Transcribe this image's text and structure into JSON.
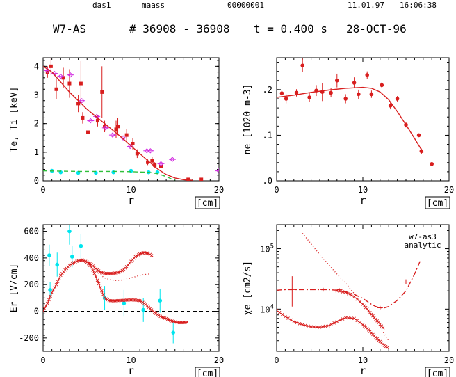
{
  "header": {
    "user": "das1",
    "group": "maass",
    "number": "00000001",
    "date": "11.01.97",
    "time": "16:06:38",
    "device": "W7-AS",
    "shots": "# 36908 - 36908",
    "time_label": "t = 0.400 s",
    "shot_date": "28-OCT-96"
  },
  "colors": {
    "red": "#d81e1e",
    "cyan": "#00e5ee",
    "magenta": "#d12be0",
    "green": "#2fbf3a",
    "ink": "#000000"
  },
  "chart_data": [
    {
      "type": "scatter",
      "panel": "top-left",
      "ylabel": "T_e, T_i  [keV]",
      "xlabel": "r",
      "xunit": "[cm]",
      "xlim": [
        0,
        20
      ],
      "ylim": [
        0,
        4.3
      ],
      "xticks": [
        0,
        10,
        20
      ],
      "yticks": [
        0,
        1,
        2,
        3,
        4
      ],
      "series": [
        {
          "name": "Te",
          "marker": "square",
          "color": "red",
          "x": [
            0.5,
            0.9,
            1.5,
            2.3,
            3,
            4,
            4.3,
            4.5,
            5.1,
            6.2,
            6.7,
            7,
            8.3,
            8.5,
            9.5,
            10.2,
            10.7,
            11.9,
            12.4,
            12.7,
            13.4,
            16.5,
            18
          ],
          "y": [
            3.8,
            4.0,
            3.2,
            3.6,
            3.4,
            2.7,
            3.4,
            2.2,
            1.7,
            2.1,
            3.1,
            1.9,
            1.8,
            1.9,
            1.6,
            1.3,
            0.95,
            0.65,
            0.7,
            0.55,
            0.5,
            0.05,
            0.05
          ],
          "yerr": [
            0.2,
            0.3,
            0.35,
            0.35,
            0.5,
            0.3,
            0.8,
            0.2,
            0.15,
            0.2,
            0.9,
            0.2,
            0.3,
            0.3,
            0.2,
            0.2,
            0.15,
            0.1,
            0.15,
            0.1,
            0.05,
            0.05,
            0.05
          ]
        },
        {
          "name": "Ti",
          "marker": "diamond",
          "color": "magenta",
          "x": [
            0.5,
            1.3,
            2.0,
            3.1,
            4.4,
            5.4,
            6.1,
            7.1,
            7.9,
            9.1,
            9.9,
            11.8,
            12.2,
            13.4,
            14.7,
            20
          ],
          "y": [
            3.85,
            3.75,
            3.65,
            3.7,
            2.8,
            2.1,
            2.25,
            1.85,
            1.6,
            1.5,
            1.2,
            1.05,
            1.05,
            0.6,
            0.75,
            0.35
          ]
        },
        {
          "name": "Ti-CX",
          "marker": "circle",
          "color": "cyan",
          "x": [
            1,
            2,
            4,
            6,
            8,
            10,
            12,
            13
          ],
          "y": [
            0.35,
            0.3,
            0.28,
            0.28,
            0.3,
            0.35,
            0.3,
            0.3
          ]
        },
        {
          "name": "Te-fit",
          "style": "line",
          "color": "red",
          "x": [
            0,
            1,
            2,
            3,
            4,
            5,
            6,
            7,
            8,
            9,
            10,
            11,
            12,
            13,
            14,
            15,
            16,
            17
          ],
          "y": [
            4.0,
            3.8,
            3.45,
            3.1,
            2.8,
            2.5,
            2.25,
            2.0,
            1.75,
            1.5,
            1.22,
            0.95,
            0.68,
            0.42,
            0.22,
            0.1,
            0.04,
            0.02
          ]
        },
        {
          "name": "Ti-fit",
          "style": "dashed",
          "color": "green",
          "x": [
            0,
            2,
            4,
            6,
            8,
            10,
            12,
            13,
            14,
            14.5,
            15
          ],
          "y": [
            0.35,
            0.34,
            0.33,
            0.33,
            0.33,
            0.32,
            0.3,
            0.25,
            0.15,
            0.08,
            0.03
          ]
        }
      ]
    },
    {
      "type": "scatter",
      "panel": "top-right",
      "ylabel": "n_e [10^20 m^-3]",
      "xlabel": "r",
      "xunit": "[cm]",
      "xlim": [
        0,
        20
      ],
      "ylim": [
        0,
        0.27
      ],
      "xticks": [
        0,
        10,
        20
      ],
      "yticks": [
        0,
        0.1,
        0.2
      ],
      "ytick_labels": [
        ".0",
        ".1",
        ".2"
      ],
      "series": [
        {
          "name": "ne",
          "marker": "circle",
          "color": "red",
          "x": [
            0.6,
            1.1,
            2.3,
            3,
            3.8,
            4.6,
            5.3,
            6.3,
            7,
            8,
            9,
            9.5,
            10.5,
            11,
            12.2,
            13.2,
            14,
            15,
            16.5,
            16.8,
            18
          ],
          "y": [
            0.192,
            0.18,
            0.193,
            0.253,
            0.183,
            0.198,
            0.195,
            0.193,
            0.22,
            0.18,
            0.215,
            0.19,
            0.232,
            0.19,
            0.21,
            0.165,
            0.18,
            0.123,
            0.1,
            0.065,
            0.037
          ],
          "yerr": [
            0.008,
            0.01,
            0.008,
            0.015,
            0.01,
            0.012,
            0.02,
            0.01,
            0.015,
            0.01,
            0.012,
            0.01,
            0.008,
            0.008,
            0.006,
            0.008,
            0.006,
            0.006,
            0.004,
            0.006,
            0.003
          ]
        },
        {
          "name": "ne-fit",
          "style": "line",
          "color": "red",
          "x": [
            0,
            2,
            4,
            6,
            8,
            10,
            11,
            12,
            13,
            14,
            15,
            16,
            17
          ],
          "y": [
            0.183,
            0.188,
            0.194,
            0.199,
            0.203,
            0.205,
            0.203,
            0.195,
            0.178,
            0.152,
            0.123,
            0.093,
            0.062
          ]
        }
      ]
    },
    {
      "type": "scatter",
      "panel": "bottom-left",
      "ylabel": "E_r [V/cm]",
      "xlabel": "r",
      "xunit": "[cm]",
      "xlim": [
        0,
        20
      ],
      "ylim": [
        -300,
        650
      ],
      "xticks": [
        0,
        10,
        20
      ],
      "yticks": [
        -200,
        0,
        200,
        400,
        600
      ],
      "series": [
        {
          "name": "Er-meas",
          "marker": "circle",
          "color": "cyan",
          "x": [
            0.7,
            0.8,
            1.6,
            3,
            3.3,
            4.3,
            7,
            9.2,
            11.4,
            13.3,
            14.8
          ],
          "y": [
            420,
            160,
            350,
            600,
            410,
            490,
            100,
            60,
            10,
            80,
            -160
          ],
          "yerr": [
            80,
            60,
            90,
            100,
            80,
            90,
            90,
            100,
            90,
            90,
            80
          ]
        },
        {
          "name": "Er-model-a",
          "style": "crosses",
          "color": "red",
          "x": [
            0,
            0.5,
            1,
            1.5,
            2,
            2.5,
            3,
            3.5,
            4,
            4.5,
            5,
            5.5,
            6,
            6.5,
            7,
            7.5,
            8,
            8.5,
            9,
            9.5,
            10,
            10.5,
            11,
            11.5,
            12,
            12.5,
            13,
            13.5,
            14,
            14.5,
            15,
            15.5,
            16,
            16.5
          ],
          "y": [
            0,
            60,
            140,
            200,
            270,
            310,
            345,
            365,
            380,
            385,
            370,
            330,
            260,
            180,
            100,
            80,
            78,
            80,
            82,
            84,
            85,
            84,
            80,
            60,
            30,
            0,
            -25,
            -45,
            -55,
            -70,
            -80,
            -85,
            -85,
            -80
          ]
        },
        {
          "name": "Er-model-b",
          "style": "crosses",
          "color": "red",
          "x": [
            5,
            5.5,
            6,
            6.5,
            7,
            7.5,
            8,
            8.5,
            9,
            9.5,
            10,
            10.5,
            11,
            11.5,
            12,
            12.5
          ],
          "y": [
            370,
            350,
            320,
            295,
            285,
            283,
            285,
            290,
            305,
            335,
            375,
            410,
            430,
            440,
            435,
            410
          ]
        },
        {
          "name": "Er-model-c",
          "style": "dotted",
          "color": "red",
          "x": [
            6,
            7,
            8,
            9,
            10,
            11,
            12
          ],
          "y": [
            300,
            250,
            230,
            235,
            250,
            270,
            280
          ]
        }
      ]
    },
    {
      "type": "line",
      "panel": "bottom-right",
      "ylabel": "χ_e  [cm^2/s]",
      "xlabel": "r",
      "xunit": "[cm]",
      "yscale": "log",
      "xlim": [
        0,
        20
      ],
      "ylim": [
        2000,
        250000
      ],
      "xticks": [
        0,
        10,
        20
      ],
      "yticks": [
        10000,
        100000
      ],
      "ytick_labels": [
        "10^4",
        "10^5"
      ],
      "annotation": "w7-as3 analytic",
      "series": [
        {
          "name": "chi-a",
          "style": "dotted",
          "color": "red",
          "x": [
            3,
            4,
            5,
            6,
            7,
            8,
            9,
            10,
            11,
            12,
            13
          ],
          "y": [
            180000,
            120000,
            80000,
            55000,
            38000,
            27000,
            18000,
            12000,
            8000,
            5000,
            3000
          ]
        },
        {
          "name": "chi-b",
          "style": "crosses",
          "color": "red",
          "x": [
            0,
            1,
            2,
            3,
            4,
            5,
            6,
            7,
            8,
            9,
            10,
            10.5,
            11,
            11.5,
            12,
            12.5,
            13
          ],
          "y": [
            9500,
            7500,
            6200,
            5500,
            5100,
            5000,
            5300,
            6200,
            7200,
            7000,
            5500,
            4800,
            4000,
            3400,
            2900,
            2500,
            2200
          ]
        },
        {
          "name": "chi-c",
          "style": "crosses",
          "color": "red",
          "x": [
            7,
            8,
            9,
            10,
            10.5,
            11,
            11.5,
            12,
            12.5
          ],
          "y": [
            20000,
            19000,
            16000,
            12000,
            10000,
            8200,
            6800,
            5600,
            4600
          ]
        },
        {
          "name": "chi-d",
          "style": "dashdot",
          "color": "red",
          "x": [
            0,
            1,
            2,
            3,
            4,
            5,
            6,
            7,
            8,
            9,
            10,
            11,
            11.5,
            12,
            12.5,
            13,
            14,
            15,
            16,
            16.7
          ],
          "y": [
            20500,
            21000,
            21000,
            21000,
            21000,
            21000,
            21000,
            20500,
            19500,
            17500,
            15000,
            12000,
            11000,
            10500,
            10500,
            11000,
            14000,
            20000,
            38000,
            65000
          ]
        },
        {
          "name": "chi-errbars",
          "marker": "errorbar",
          "color": "red",
          "x": [
            1.8,
            5.4,
            7.3,
            12,
            15
          ],
          "y": [
            21000,
            21000,
            21000,
            10500,
            28000
          ],
          "yerr_lo": [
            10000,
            1500,
            1000,
            800,
            2500
          ],
          "yerr_hi": [
            14000,
            1500,
            1000,
            800,
            3000
          ]
        }
      ]
    }
  ]
}
